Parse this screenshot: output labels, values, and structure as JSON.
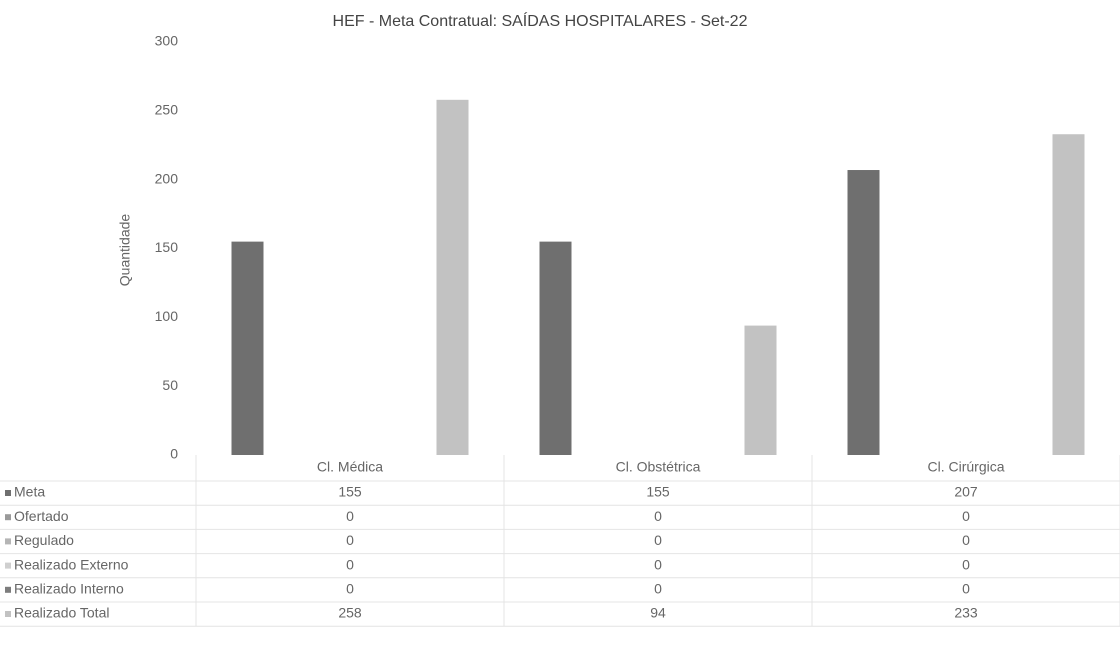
{
  "chart_data": {
    "type": "bar",
    "title": "HEF - Meta Contratual: SAÍDAS HOSPITALARES - Set-22",
    "y_label": "Quantidade",
    "categories": [
      "Cl. Médica",
      "Cl. Obstétrica",
      "Cl. Cirúrgica"
    ],
    "series": [
      {
        "name": "Meta",
        "color": "#6f6f6f",
        "values": [
          155,
          155,
          207
        ]
      },
      {
        "name": "Ofertado",
        "color": "#9a9a9a",
        "values": [
          0,
          0,
          0
        ]
      },
      {
        "name": "Regulado",
        "color": "#b5b5b5",
        "values": [
          0,
          0,
          0
        ]
      },
      {
        "name": "Realizado Externo",
        "color": "#cfcfcf",
        "values": [
          0,
          0,
          0
        ]
      },
      {
        "name": "Realizado Interno",
        "color": "#7d7d7d",
        "values": [
          0,
          0,
          0
        ]
      },
      {
        "name": "Realizado Total",
        "color": "#c2c2c2",
        "values": [
          258,
          94,
          233
        ]
      }
    ],
    "ylim": [
      0,
      300
    ],
    "yticks": [
      0,
      50,
      100,
      150,
      200,
      250,
      300
    ],
    "grid": false
  }
}
